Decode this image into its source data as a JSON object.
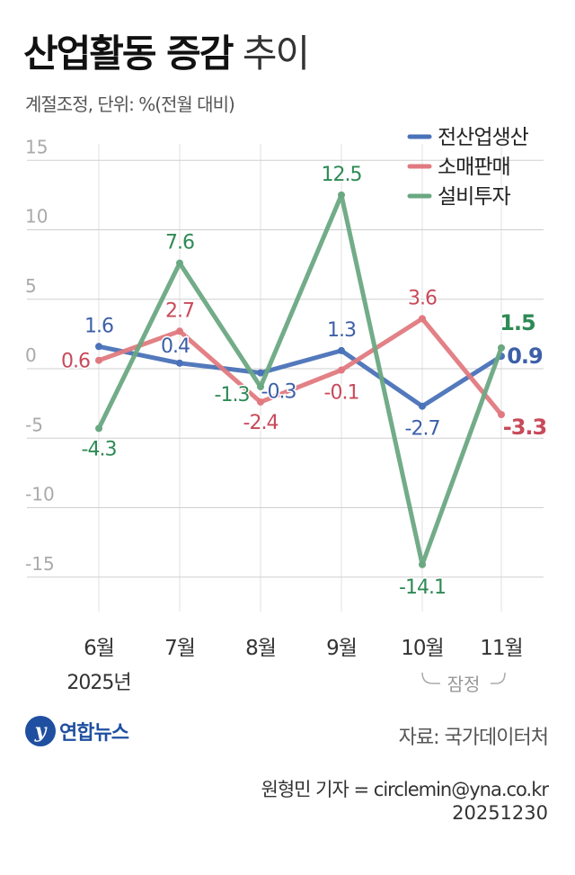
{
  "header": {
    "title_bold": "산업활동 증감",
    "title_light": "추이",
    "subtitle": "계절조정, 단위: %(전월 대비)"
  },
  "chart_data": {
    "type": "line",
    "categories": [
      "6월",
      "7월",
      "8월",
      "9월",
      "10월",
      "11월"
    ],
    "year_label": "2025년",
    "provisional_label": "잠정",
    "ylim": [
      -17,
      17
    ],
    "yticks": [
      15,
      10,
      5,
      0,
      -5,
      -10,
      -15
    ],
    "ytick_labels": [
      "15",
      "10",
      "5",
      "0",
      "-5",
      "-10",
      "-15"
    ],
    "grid": true,
    "legend_position": "top-right",
    "series": [
      {
        "name": "전산업생산",
        "color": "#4a72b8",
        "label_color": "#3d5fa8",
        "values": [
          1.6,
          0.4,
          -0.3,
          1.3,
          -2.7,
          0.9
        ],
        "labels": [
          "1.6",
          "0.4",
          "-0.3",
          "1.3",
          "-2.7",
          "0.9"
        ]
      },
      {
        "name": "소매판매",
        "color": "#e07a80",
        "label_color": "#c84a5a",
        "values": [
          0.6,
          2.7,
          -2.4,
          -0.1,
          3.6,
          -3.3
        ],
        "labels": [
          "0.6",
          "2.7",
          "-2.4",
          "-0.1",
          "3.6",
          "-3.3"
        ]
      },
      {
        "name": "설비투자",
        "color": "#6aa882",
        "label_color": "#2e8a55",
        "values": [
          -4.3,
          7.6,
          -1.3,
          12.5,
          -14.1,
          1.5
        ],
        "labels": [
          "-4.3",
          "7.6",
          "-1.3",
          "12.5",
          "-14.1",
          "1.5"
        ]
      }
    ]
  },
  "footer": {
    "logo_mark": "y",
    "logo_text": "연합뉴스",
    "source": "자료: 국가데이터처",
    "credit": "원형민 기자 = circlemin@yna.co.kr",
    "date": "20251230"
  }
}
